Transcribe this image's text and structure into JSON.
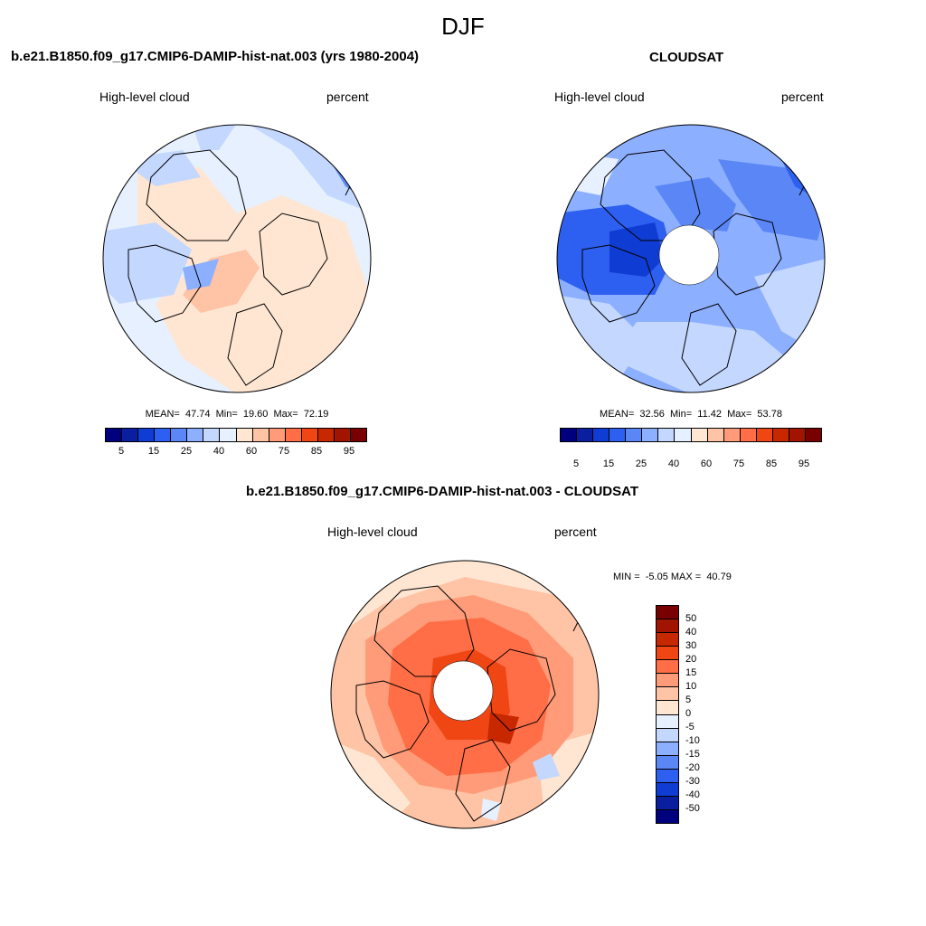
{
  "season": "DJF",
  "panels": [
    {
      "title": "b.e21.B1850.f09_g17.CMIP6-DAMIP-hist-nat.003 (yrs 1980-2004)",
      "left_label": "High-level cloud",
      "right_label": "percent",
      "stats": "MEAN=  47.74  Min=  19.60  Max=  72.19",
      "mean": 47.74,
      "min": 19.6,
      "max": 72.19,
      "pole_hole": false
    },
    {
      "title": "CLOUDSAT",
      "left_label": "High-level cloud",
      "right_label": "percent",
      "stats": "MEAN=  32.56  Min=  11.42  Max=  53.78",
      "mean": 32.56,
      "min": 11.42,
      "max": 53.78,
      "pole_hole": true
    },
    {
      "title": "b.e21.B1850.f09_g17.CMIP6-DAMIP-hist-nat.003 - CLOUDSAT",
      "left_label": "High-level cloud",
      "right_label": "percent",
      "stats": "MIN =  -5.05 MAX =  40.79",
      "min": -5.05,
      "max": 40.79,
      "pole_hole": true
    }
  ],
  "colorbar_abs": {
    "colors": [
      "#00007f",
      "#0a1ea0",
      "#0f3cd2",
      "#2d5ff0",
      "#5a87f5",
      "#8cafff",
      "#c3d7ff",
      "#e6f0ff",
      "#ffe6d2",
      "#ffc3a5",
      "#ff9b78",
      "#ff6e46",
      "#f04614",
      "#c82800",
      "#a01400",
      "#780000"
    ],
    "tick_labels": [
      "5",
      "15",
      "25",
      "40",
      "60",
      "75",
      "85",
      "95"
    ]
  },
  "colorbar_diff": {
    "colors": [
      "#780000",
      "#a01400",
      "#c82800",
      "#f04614",
      "#ff6e46",
      "#ff9b78",
      "#ffc3a5",
      "#ffe6d2",
      "#e6f0ff",
      "#c3d7ff",
      "#8cafff",
      "#5a87f5",
      "#2d5ff0",
      "#0f3cd2",
      "#0a1ea0",
      "#00007f"
    ],
    "tick_labels": [
      "50",
      "40",
      "30",
      "20",
      "15",
      "10",
      "5",
      "0",
      "-5",
      "-10",
      "-15",
      "-20",
      "-30",
      "-40",
      "-50"
    ]
  }
}
